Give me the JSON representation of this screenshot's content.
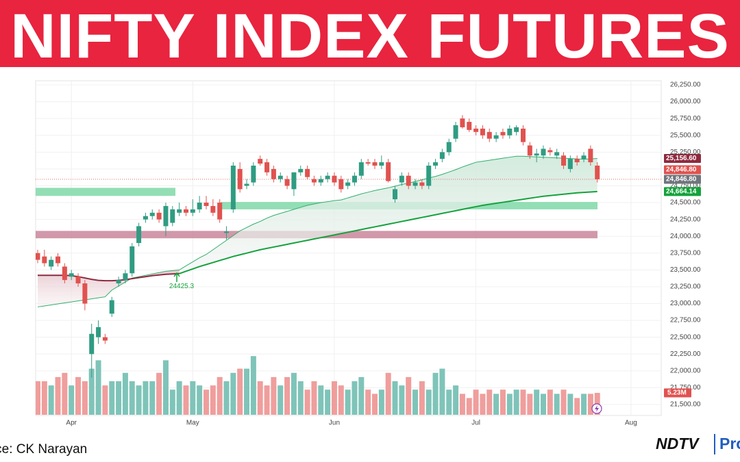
{
  "chart_data": {
    "type": "candlestick",
    "title": "NIFTY INDEX FUTURES",
    "source": "Source: CK Narayan",
    "brand": "NDTV",
    "brand_suffix": "Profit",
    "annotation": "24425.3",
    "categories": [
      null,
      null,
      null,
      null,
      null,
      "Apr",
      null,
      null,
      null,
      null,
      null,
      null,
      null,
      null,
      null,
      null,
      null,
      null,
      null,
      null,
      null,
      null,
      null,
      "May",
      null,
      null,
      null,
      null,
      null,
      null,
      null,
      null,
      null,
      null,
      null,
      null,
      null,
      null,
      null,
      null,
      null,
      null,
      null,
      null,
      "Jun",
      null,
      null,
      null,
      null,
      null,
      null,
      null,
      null,
      null,
      null,
      null,
      null,
      null,
      null,
      null,
      null,
      null,
      null,
      null,
      null,
      "Jul",
      null,
      null,
      null,
      null,
      null,
      null,
      null,
      null,
      null,
      null,
      null,
      null,
      null,
      null,
      null,
      null,
      null,
      null,
      null,
      null,
      null,
      null,
      "Aug",
      null,
      null,
      null,
      null
    ],
    "open": [
      23750,
      23700,
      23550,
      23700,
      23550,
      23400,
      23400,
      23300,
      22250,
      22500,
      22500,
      22850,
      23300,
      23350,
      23450,
      23900,
      24250,
      24300,
      24350,
      24150,
      24200,
      24350,
      24400,
      24350,
      24400,
      24500,
      24450,
      24500,
      24050,
      24400,
      25000,
      24750,
      24800,
      25150,
      25100,
      25000,
      24850,
      24850,
      24700,
      24950,
      25000,
      24850,
      24800,
      24850,
      24900,
      24850,
      24750,
      24800,
      24900,
      25100,
      25100,
      25050,
      25100,
      24550,
      24800,
      24900,
      24750,
      24800,
      24750,
      25050,
      25150,
      25250,
      25450,
      25750,
      25700,
      25600,
      25600,
      25550,
      25450,
      25550,
      25500,
      25550,
      25600,
      25350,
      25200,
      25200,
      25280,
      25200,
      25200,
      25000,
      25150,
      25150,
      25300,
      25050,
      null,
      null,
      null,
      null,
      null,
      null,
      null,
      null,
      null
    ],
    "high": [
      23800,
      23800,
      23700,
      23750,
      23600,
      23500,
      23450,
      23350,
      22700,
      22750,
      22550,
      23100,
      23400,
      23500,
      23900,
      24200,
      24350,
      24400,
      24400,
      24500,
      24450,
      24500,
      24450,
      24550,
      24600,
      24600,
      24550,
      24550,
      24150,
      25100,
      25100,
      24850,
      25100,
      25200,
      25150,
      25050,
      24950,
      24900,
      24950,
      25050,
      25050,
      24900,
      24900,
      24950,
      24950,
      24900,
      24850,
      24950,
      25150,
      25150,
      25150,
      25200,
      25150,
      24750,
      24950,
      24950,
      24850,
      24850,
      25100,
      25150,
      25300,
      25450,
      25700,
      25800,
      25750,
      25650,
      25650,
      25600,
      25550,
      25600,
      25650,
      25650,
      25650,
      25400,
      25300,
      25350,
      25320,
      25300,
      25250,
      25200,
      25200,
      25250,
      25350,
      25100,
      null,
      null,
      null,
      null,
      null,
      null,
      null,
      null,
      null
    ],
    "low": [
      23600,
      23550,
      23500,
      23550,
      23300,
      23350,
      23250,
      22900,
      21900,
      22400,
      22400,
      22800,
      23250,
      23300,
      23400,
      23850,
      24200,
      24250,
      24200,
      24000,
      24150,
      24300,
      24300,
      24300,
      24350,
      24400,
      24300,
      24200,
      23950,
      24350,
      24650,
      24700,
      24750,
      25050,
      24900,
      24800,
      24800,
      24700,
      24600,
      24900,
      24850,
      24750,
      24750,
      24800,
      24750,
      24650,
      24700,
      24750,
      24850,
      25050,
      25000,
      25000,
      24800,
      24500,
      24750,
      24700,
      24700,
      24700,
      24700,
      25000,
      25100,
      25200,
      25400,
      25600,
      25550,
      25500,
      25450,
      25400,
      25400,
      25450,
      25450,
      25500,
      25350,
      25150,
      25100,
      25150,
      25200,
      25150,
      25000,
      24950,
      25050,
      25100,
      25050,
      24800,
      null,
      null,
      null,
      null,
      null,
      null,
      null,
      null,
      null
    ],
    "close": [
      23650,
      23600,
      23650,
      23600,
      23350,
      23450,
      23300,
      23000,
      22550,
      22650,
      22450,
      23050,
      23350,
      23450,
      23850,
      24150,
      24300,
      24350,
      24250,
      24450,
      24400,
      24400,
      24350,
      24400,
      24500,
      24450,
      24350,
      24250,
      24070,
      25050,
      24700,
      24780,
      25050,
      25080,
      24950,
      24850,
      24900,
      24750,
      24950,
      25000,
      24880,
      24800,
      24850,
      24900,
      24800,
      24700,
      24800,
      24900,
      25100,
      25080,
      25050,
      25100,
      24820,
      24700,
      24900,
      24750,
      24800,
      24750,
      25050,
      25100,
      25250,
      25400,
      25650,
      25620,
      25580,
      25550,
      25500,
      25450,
      25500,
      25500,
      25600,
      25620,
      25400,
      25200,
      25230,
      25300,
      25250,
      25250,
      25050,
      25150,
      25100,
      25200,
      25100,
      24846.8,
      null,
      null,
      null,
      null,
      null,
      null,
      null,
      null,
      null
    ],
    "volume": [
      8,
      8,
      7,
      9,
      10,
      7,
      9,
      8,
      11,
      13,
      7,
      8,
      8,
      10,
      8,
      7,
      8,
      8,
      10,
      13,
      6,
      8,
      7,
      8,
      7,
      6,
      7,
      9,
      8,
      10,
      11,
      11,
      14,
      8,
      7,
      9,
      7,
      9,
      10,
      8,
      6,
      8,
      7,
      6,
      8,
      7,
      6,
      8,
      9,
      6,
      5,
      6,
      10,
      8,
      7,
      9,
      6,
      8,
      6,
      10,
      11,
      6,
      7,
      5,
      4,
      6,
      5,
      6,
      5,
      6,
      5,
      6,
      6,
      5,
      6,
      5,
      6,
      5,
      6,
      5,
      4,
      5,
      5,
      5.23,
      null,
      null,
      null,
      null,
      null,
      null,
      null,
      null,
      null
    ],
    "volume_lim": [
      0,
      16
    ],
    "volume_label": "5.23M",
    "up_color": "#2f9c82",
    "down_color": "#e0524f",
    "volume_up_color": "#7fc4b9",
    "volume_down_color": "#ef9e9c",
    "lines": [
      {
        "color": "#2fae6c",
        "width": 1,
        "values": [
          22950,
          22965,
          22980,
          22995,
          23010,
          23025,
          23040,
          23055,
          23070,
          23085,
          23100,
          23200,
          23260,
          23320,
          23380,
          23400,
          23420,
          23440,
          23460,
          23480,
          23490,
          23500,
          23560,
          23620,
          23680,
          23730,
          23800,
          23870,
          23940,
          24010,
          24080,
          24130,
          24180,
          24220,
          24270,
          24310,
          24340,
          24370,
          24400,
          24430,
          24460,
          24480,
          24500,
          24515,
          24530,
          24540,
          24570,
          24600,
          24630,
          24655,
          24680,
          24700,
          24720,
          24745,
          24770,
          24790,
          24815,
          24840,
          24865,
          24890,
          24920,
          24955,
          24990,
          25030,
          25065,
          25100,
          25115,
          25130,
          25145,
          25160,
          25175,
          25190,
          25190,
          25185,
          25180,
          25175,
          25170,
          25165,
          25160,
          25155,
          25150,
          25145,
          25150,
          25156.6,
          null,
          null,
          null,
          null,
          null,
          null,
          null,
          null,
          null
        ]
      },
      {
        "color": "#8e2a3e",
        "width": 2,
        "values": [
          23420,
          23420,
          23420,
          23420,
          23420,
          23415,
          23400,
          23380,
          23360,
          23345,
          23340,
          23340,
          23345,
          23355,
          23370,
          23385,
          23400,
          23415,
          23425,
          23435,
          23440,
          23445,
          null,
          null,
          null,
          null,
          null,
          null,
          null,
          null,
          null,
          null,
          null,
          null,
          null,
          null,
          null,
          null,
          null,
          null,
          null,
          null,
          null,
          null,
          null,
          null,
          null,
          null,
          null,
          null,
          null,
          null,
          null,
          null,
          null,
          null,
          null,
          null,
          null,
          null,
          null,
          null,
          null,
          null,
          null,
          null,
          null,
          null,
          null,
          null,
          null,
          null,
          null,
          null,
          null,
          null,
          null,
          null,
          null,
          null,
          null,
          null,
          null,
          null,
          null,
          null,
          null,
          null,
          null,
          null,
          null,
          null,
          null
        ]
      },
      {
        "color": "#14a23c",
        "width": 2,
        "values": [
          null,
          null,
          null,
          null,
          null,
          null,
          null,
          null,
          null,
          null,
          null,
          null,
          null,
          null,
          null,
          null,
          null,
          null,
          null,
          null,
          null,
          23445,
          23480,
          23515,
          23550,
          23580,
          23610,
          23640,
          23670,
          23700,
          23725,
          23750,
          23775,
          23800,
          23820,
          23840,
          23860,
          23880,
          23900,
          23920,
          23940,
          23960,
          23980,
          24000,
          24020,
          24040,
          24060,
          24080,
          24100,
          24120,
          24140,
          24160,
          24180,
          24200,
          24220,
          24240,
          24260,
          24280,
          24300,
          24320,
          24340,
          24360,
          24380,
          24400,
          24420,
          24440,
          24460,
          24475,
          24490,
          24505,
          24520,
          24535,
          24550,
          24565,
          24580,
          24595,
          24605,
          24615,
          24625,
          24635,
          24645,
          24652,
          24658,
          24664.14,
          null,
          null,
          null,
          null,
          null,
          null,
          null,
          null,
          null
        ]
      }
    ],
    "zones": [
      {
        "low": 24600,
        "high": 24720,
        "color": "#80d8a8"
      },
      {
        "low": 24400,
        "high": 24510,
        "color": "#80d8a8"
      },
      {
        "low": 23970,
        "high": 24080,
        "color": "#c9869b"
      }
    ],
    "price_labels": [
      {
        "value": 25156.6,
        "label": "25,156.60",
        "color": "#8e2a3e"
      },
      {
        "value": 24846.8,
        "label": "24,846.80",
        "color": "#e0524f"
      },
      {
        "value": 24846.8,
        "label": "24,846.80",
        "color": "#6f757c"
      },
      {
        "value": 24664.14,
        "label": "24,664.14",
        "color": "#14a23c"
      }
    ],
    "ylim": [
      21500,
      26250
    ],
    "yticks": [
      {
        "value": 21500,
        "label": "21,500.00"
      },
      {
        "value": 21750,
        "label": "21,750.00"
      },
      {
        "value": 22000,
        "label": "22,000.00"
      },
      {
        "value": 22250,
        "label": "22,250.00"
      },
      {
        "value": 22500,
        "label": "22,500.00"
      },
      {
        "value": 22750,
        "label": "22,750.00"
      },
      {
        "value": 23000,
        "label": "23,000.00"
      },
      {
        "value": 23250,
        "label": "23,250.00"
      },
      {
        "value": 23500,
        "label": "23,500.00"
      },
      {
        "value": 23750,
        "label": "23,750.00"
      },
      {
        "value": 24000,
        "label": "24,000.00"
      },
      {
        "value": 24250,
        "label": "24,250.00"
      },
      {
        "value": 24500,
        "label": "24,500.00"
      },
      {
        "value": 24750,
        "label": "24,750.00"
      },
      {
        "value": 25000,
        "label": "25,000.00"
      },
      {
        "value": 25250,
        "label": "25,250.00"
      },
      {
        "value": 25500,
        "label": "25,500.00"
      },
      {
        "value": 25750,
        "label": "25,750.00"
      },
      {
        "value": 26000,
        "label": "26,000.00"
      },
      {
        "value": 26250,
        "label": "26,250.00"
      }
    ],
    "grid": true
  }
}
